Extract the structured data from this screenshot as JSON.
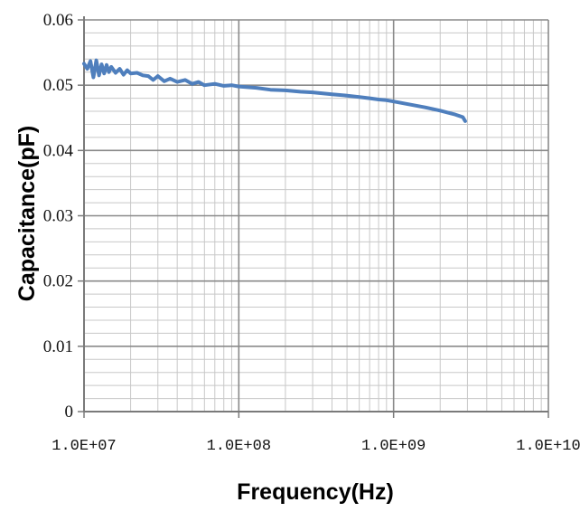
{
  "chart_data": {
    "type": "line",
    "xlabel": "Frequency(Hz)",
    "ylabel": "Capacitance(pF)",
    "xscale": "log",
    "xlim": [
      10000000,
      10000000000
    ],
    "ylim": [
      0,
      0.06
    ],
    "x_tick_labels": [
      "1.0E+07",
      "1.0E+08",
      "1.0E+09",
      "1.0E+10"
    ],
    "y_tick_labels": [
      "0",
      "0.01",
      "0.02",
      "0.03",
      "0.04",
      "0.05",
      "0.06"
    ],
    "grid": true,
    "legend": "none",
    "line_color": "#4f7fbd",
    "series": [
      {
        "x": [
          10000000,
          10500000,
          11000000,
          11500000,
          12000000,
          12500000,
          13000000,
          13500000,
          14000000,
          14500000,
          15000000,
          16000000,
          17000000,
          18000000,
          19000000,
          20000000,
          22000000,
          24000000,
          26000000,
          28000000,
          30000000,
          33000000,
          36000000,
          40000000,
          45000000,
          50000000,
          55000000,
          60000000,
          70000000,
          80000000,
          90000000,
          100000000,
          130000000,
          160000000,
          200000000,
          250000000,
          300000000,
          400000000,
          500000000,
          600000000,
          700000000,
          800000000,
          900000000,
          1000000000,
          1300000000,
          1600000000,
          2000000000,
          2500000000,
          2800000000,
          2900000000
        ],
        "values": [
          0.0533,
          0.0525,
          0.0537,
          0.0512,
          0.0538,
          0.0515,
          0.0532,
          0.0518,
          0.0531,
          0.052,
          0.0528,
          0.0519,
          0.0525,
          0.0516,
          0.0523,
          0.0518,
          0.0519,
          0.0515,
          0.0514,
          0.0508,
          0.0514,
          0.0506,
          0.051,
          0.0505,
          0.0508,
          0.0502,
          0.0505,
          0.05,
          0.0502,
          0.0499,
          0.05,
          0.0498,
          0.0496,
          0.0493,
          0.0492,
          0.049,
          0.0489,
          0.0486,
          0.0484,
          0.0482,
          0.048,
          0.0478,
          0.0477,
          0.0475,
          0.047,
          0.0466,
          0.0461,
          0.0455,
          0.0451,
          0.0445
        ]
      }
    ]
  }
}
